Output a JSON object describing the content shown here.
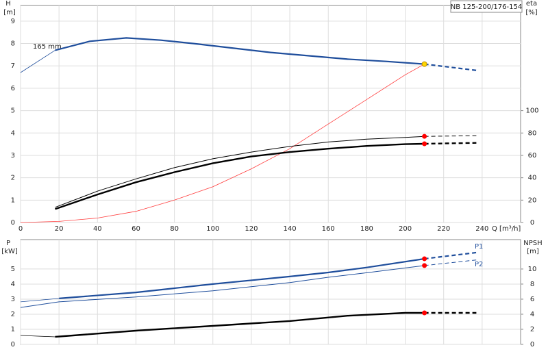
{
  "chart_data": [
    {
      "type": "line",
      "title": "NB 125-200/176-154",
      "xlabel": "Q [m³/h]",
      "ylabel": "H",
      "yunit": "[m]",
      "y2label": "eta",
      "y2unit": "[%]",
      "annotation": "165 mm",
      "xlim": [
        0,
        260
      ],
      "xticks": [
        0,
        20,
        40,
        60,
        80,
        100,
        120,
        140,
        160,
        180,
        200,
        220,
        240
      ],
      "ylim": [
        0,
        9.7
      ],
      "yticks": [
        0,
        1,
        2,
        3,
        4,
        5,
        6,
        7,
        8,
        9
      ],
      "y2lim": [
        0,
        194
      ],
      "y2ticks": [
        0,
        20,
        40,
        60,
        80,
        100
      ],
      "grid": true,
      "series": [
        {
          "color": "#1f4e9c",
          "width": 0.8,
          "x": [
            0,
            18
          ],
          "values": [
            6.7,
            7.7
          ]
        },
        {
          "color": "#1f4e9c",
          "width": 2.2,
          "x": [
            18,
            36,
            55,
            73,
            90,
            110,
            130,
            150,
            170,
            190,
            210
          ],
          "values": [
            7.7,
            8.1,
            8.25,
            8.15,
            8.0,
            7.8,
            7.6,
            7.45,
            7.3,
            7.2,
            7.08
          ]
        },
        {
          "color": "#1f4e9c",
          "width": 2.2,
          "dash": true,
          "x": [
            210,
            237
          ],
          "values": [
            7.08,
            6.8
          ]
        },
        {
          "color": "#ff3b3b",
          "width": 0.8,
          "x": [
            0,
            20,
            40,
            60,
            80,
            100,
            120,
            140,
            160,
            180,
            200,
            210
          ],
          "values": [
            0,
            0.05,
            0.2,
            0.5,
            1.0,
            1.6,
            2.4,
            3.3,
            4.4,
            5.5,
            6.6,
            7.08
          ]
        },
        {
          "color": "#000000",
          "width": 1,
          "axis": "y2",
          "x": [
            18,
            40,
            60,
            80,
            100,
            120,
            140,
            160,
            180,
            200,
            210
          ],
          "values": [
            13.6,
            28,
            39,
            49,
            57,
            63,
            68,
            72,
            74.5,
            76,
            77
          ]
        },
        {
          "color": "#000000",
          "width": 1,
          "axis": "y2",
          "dash": true,
          "x": [
            210,
            237
          ],
          "values": [
            77,
            77.6
          ]
        },
        {
          "color": "#000000",
          "width": 2.4,
          "axis": "y2",
          "x": [
            18,
            40,
            60,
            80,
            100,
            120,
            140,
            160,
            180,
            200,
            210
          ],
          "values": [
            12,
            25,
            36,
            45,
            53,
            59,
            63,
            66,
            68.4,
            70,
            70.4
          ]
        },
        {
          "color": "#000000",
          "width": 2.4,
          "axis": "y2",
          "dash": true,
          "x": [
            210,
            237
          ],
          "values": [
            70.4,
            71.2
          ]
        }
      ],
      "points": [
        {
          "x": 210,
          "y": 7.08,
          "color": "#ffd700"
        },
        {
          "x": 210,
          "y": 77,
          "color": "#ff0000",
          "axis": "y2"
        },
        {
          "x": 210,
          "y": 70.4,
          "color": "#ff0000",
          "axis": "y2"
        }
      ]
    },
    {
      "type": "line",
      "ylabel": "P",
      "yunit": "[kW]",
      "y2label": "NPSH",
      "y2unit": "[m]",
      "xlim": [
        0,
        260
      ],
      "xticks": [
        0,
        20,
        40,
        60,
        80,
        100,
        120,
        140,
        160,
        180,
        200,
        220,
        240
      ],
      "ylim": [
        0,
        6.95
      ],
      "yticks": [
        0,
        1,
        2,
        3,
        4,
        5
      ],
      "y2lim": [
        0,
        13.9
      ],
      "y2ticks": [
        0,
        2,
        4,
        6,
        8,
        10
      ],
      "grid": true,
      "series": [
        {
          "color": "#1f4e9c",
          "width": 0.8,
          "x": [
            0,
            20
          ],
          "values": [
            2.82,
            3.05
          ]
        },
        {
          "color": "#1f4e9c",
          "width": 2.2,
          "label": "P1",
          "x": [
            20,
            60,
            100,
            140,
            160,
            180,
            210
          ],
          "values": [
            3.05,
            3.45,
            4.0,
            4.5,
            4.77,
            5.1,
            5.68
          ]
        },
        {
          "color": "#1f4e9c",
          "width": 2.2,
          "dash": true,
          "x": [
            210,
            237
          ],
          "values": [
            5.68,
            6.09
          ]
        },
        {
          "color": "#1f4e9c",
          "width": 1,
          "label": "P2",
          "x": [
            0,
            20,
            60,
            100,
            140,
            160,
            180,
            210
          ],
          "values": [
            2.45,
            2.82,
            3.15,
            3.55,
            4.1,
            4.45,
            4.75,
            5.23
          ]
        },
        {
          "color": "#1f4e9c",
          "width": 1,
          "dash": true,
          "x": [
            210,
            237
          ],
          "values": [
            5.23,
            5.6
          ]
        },
        {
          "color": "#000000",
          "width": 0.8,
          "axis": "y2",
          "x": [
            0,
            18
          ],
          "values": [
            1.18,
            1.0
          ]
        },
        {
          "color": "#000000",
          "width": 2.4,
          "axis": "y2",
          "x": [
            18,
            60,
            100,
            140,
            170,
            200,
            210
          ],
          "values": [
            1.0,
            1.82,
            2.45,
            3.1,
            3.8,
            4.18,
            4.18
          ]
        },
        {
          "color": "#000000",
          "width": 2.4,
          "axis": "y2",
          "dash": true,
          "x": [
            210,
            237
          ],
          "values": [
            4.18,
            4.18
          ]
        }
      ],
      "points": [
        {
          "x": 210,
          "y": 5.68,
          "color": "#ff0000"
        },
        {
          "x": 210,
          "y": 5.23,
          "color": "#ff0000"
        },
        {
          "x": 210,
          "y": 4.18,
          "color": "#ff0000",
          "axis": "y2"
        }
      ]
    }
  ]
}
